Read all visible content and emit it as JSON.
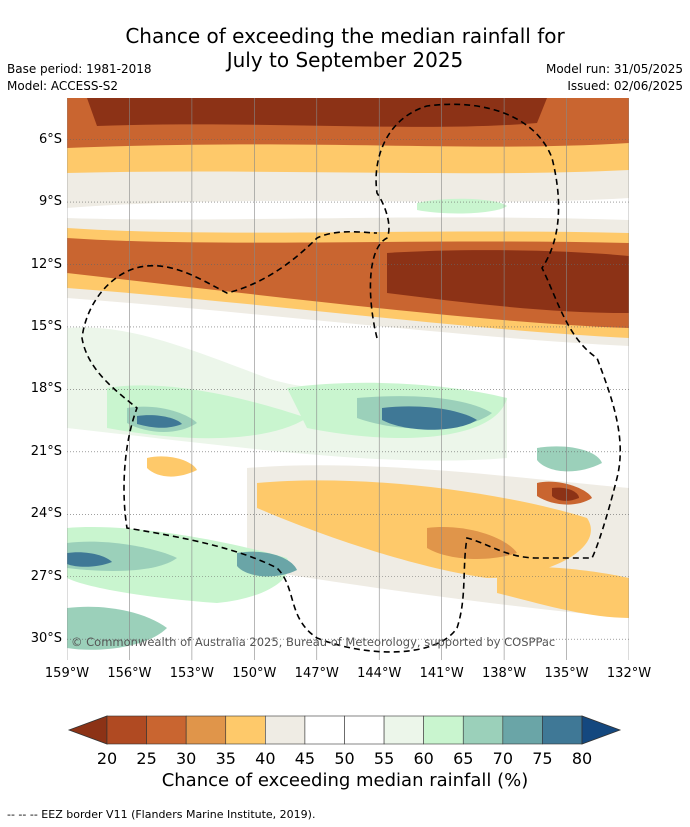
{
  "title": {
    "line1": "Chance of exceeding the median rainfall for",
    "line2": "July to September 2025"
  },
  "meta": {
    "base_period": "Base period: 1981-2018",
    "model": "Model: ACCESS-S2",
    "model_run": "Model run: 31/05/2025",
    "issued": "Issued: 02/06/2025"
  },
  "map": {
    "copyright": "© Commonwealth of Australia 2025, Bureau of Meteorology, supported by COSPPac",
    "lat_labels": [
      "6°S",
      "9°S",
      "12°S",
      "15°S",
      "18°S",
      "21°S",
      "24°S",
      "27°S",
      "30°S"
    ],
    "lon_labels": [
      "159°W",
      "156°W",
      "153°W",
      "150°W",
      "147°W",
      "144°W",
      "141°W",
      "138°W",
      "135°W",
      "132°W"
    ],
    "lat_values": [
      6,
      9,
      12,
      15,
      18,
      21,
      24,
      27,
      30
    ],
    "lon_values": [
      159,
      156,
      153,
      150,
      147,
      144,
      141,
      138,
      135,
      132
    ],
    "extent": {
      "lon_west": 159,
      "lon_east": 132,
      "lat_north": 4,
      "lat_south": 31
    }
  },
  "colorbar": {
    "title": "Chance of exceeding median rainfall (%)",
    "ticks": [
      "20",
      "25",
      "30",
      "35",
      "40",
      "45",
      "50",
      "55",
      "60",
      "65",
      "70",
      "75",
      "80"
    ],
    "colors": [
      "#8c3216",
      "#b04a22",
      "#c96530",
      "#e0954a",
      "#fec96a",
      "#efece4",
      "#ffffff",
      "#ffffff",
      "#ecf6ea",
      "#c9f5cf",
      "#9bd0ba",
      "#6aa5a7",
      "#3f7896",
      "#14487f"
    ]
  },
  "footer": "-- -- -- EEZ border V11 (Flanders Marine Institute, 2019)."
}
